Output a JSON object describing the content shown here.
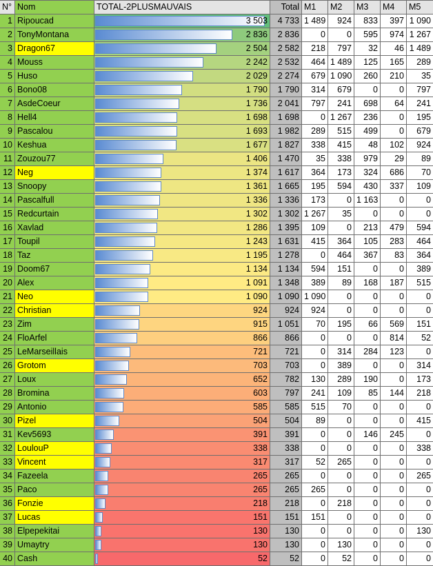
{
  "table": {
    "header": [
      "N°",
      "Nom",
      "TOTAL-2PLUSMAUVAIS",
      "Total",
      "M1",
      "M2",
      "M3",
      "M4",
      "M5"
    ],
    "highlight_color": "#ffff00",
    "name_color": "#92d050",
    "rows": [
      {
        "rank": 1,
        "name": "Ripoucad",
        "score": "3 503",
        "total": "4 733",
        "m": [
          "1 489",
          "924",
          "833",
          "397",
          "1 090"
        ]
      },
      {
        "rank": 2,
        "name": "TonyMontana",
        "score": "2 836",
        "total": "2 836",
        "m": [
          "0",
          "0",
          "595",
          "974",
          "1 267"
        ]
      },
      {
        "rank": 3,
        "name": "Dragon67",
        "score": "2 504",
        "total": "2 582",
        "m": [
          "218",
          "797",
          "32",
          "46",
          "1 489"
        ],
        "highlight": true
      },
      {
        "rank": 4,
        "name": "Mouss",
        "score": "2 242",
        "total": "2 532",
        "m": [
          "464",
          "1 489",
          "125",
          "165",
          "289"
        ]
      },
      {
        "rank": 5,
        "name": "Huso",
        "score": "2 029",
        "total": "2 274",
        "m": [
          "679",
          "1 090",
          "260",
          "210",
          "35"
        ]
      },
      {
        "rank": 6,
        "name": "Bono08",
        "score": "1 790",
        "total": "1 790",
        "m": [
          "314",
          "679",
          "0",
          "0",
          "797"
        ]
      },
      {
        "rank": 7,
        "name": "AsdeCoeur",
        "score": "1 736",
        "total": "2 041",
        "m": [
          "797",
          "241",
          "698",
          "64",
          "241"
        ]
      },
      {
        "rank": 8,
        "name": "Hell4",
        "score": "1 698",
        "total": "1 698",
        "m": [
          "0",
          "1 267",
          "236",
          "0",
          "195"
        ]
      },
      {
        "rank": 9,
        "name": "Pascalou",
        "score": "1 693",
        "total": "1 982",
        "m": [
          "289",
          "515",
          "499",
          "0",
          "679"
        ]
      },
      {
        "rank": 10,
        "name": "Keshua",
        "score": "1 677",
        "total": "1 827",
        "m": [
          "338",
          "415",
          "48",
          "102",
          "924"
        ]
      },
      {
        "rank": 11,
        "name": "Zouzou77",
        "score": "1 406",
        "total": "1 470",
        "m": [
          "35",
          "338",
          "979",
          "29",
          "89"
        ]
      },
      {
        "rank": 12,
        "name": "Neg",
        "score": "1 374",
        "total": "1 617",
        "m": [
          "364",
          "173",
          "324",
          "686",
          "70"
        ],
        "highlight": true
      },
      {
        "rank": 13,
        "name": "Snoopy",
        "score": "1 361",
        "total": "1 665",
        "m": [
          "195",
          "594",
          "430",
          "337",
          "109"
        ]
      },
      {
        "rank": 14,
        "name": "Pascalfull",
        "score": "1 336",
        "total": "1 336",
        "m": [
          "173",
          "0",
          "1 163",
          "0",
          "0"
        ]
      },
      {
        "rank": 15,
        "name": "Redcurtain",
        "score": "1 302",
        "total": "1 302",
        "m": [
          "1 267",
          "35",
          "0",
          "0",
          "0"
        ]
      },
      {
        "rank": 16,
        "name": "Xavlad",
        "score": "1 286",
        "total": "1 395",
        "m": [
          "109",
          "0",
          "213",
          "479",
          "594"
        ]
      },
      {
        "rank": 17,
        "name": "Toupil",
        "score": "1 243",
        "total": "1 631",
        "m": [
          "415",
          "364",
          "105",
          "283",
          "464"
        ]
      },
      {
        "rank": 18,
        "name": "Taz",
        "score": "1 195",
        "total": "1 278",
        "m": [
          "0",
          "464",
          "367",
          "83",
          "364"
        ]
      },
      {
        "rank": 19,
        "name": "Doom67",
        "score": "1 134",
        "total": "1 134",
        "m": [
          "594",
          "151",
          "0",
          "0",
          "389"
        ]
      },
      {
        "rank": 20,
        "name": "Alex",
        "score": "1 091",
        "total": "1 348",
        "m": [
          "389",
          "89",
          "168",
          "187",
          "515"
        ]
      },
      {
        "rank": 21,
        "name": "Neo",
        "score": "1 090",
        "total": "1 090",
        "m": [
          "1 090",
          "0",
          "0",
          "0",
          "0"
        ],
        "highlight": true
      },
      {
        "rank": 22,
        "name": "Christian",
        "score": "924",
        "total": "924",
        "m": [
          "924",
          "0",
          "0",
          "0",
          "0"
        ],
        "highlight": true
      },
      {
        "rank": 23,
        "name": "Zim",
        "score": "915",
        "total": "1 051",
        "m": [
          "70",
          "195",
          "66",
          "569",
          "151"
        ]
      },
      {
        "rank": 24,
        "name": "FloArfel",
        "score": "866",
        "total": "866",
        "m": [
          "0",
          "0",
          "0",
          "814",
          "52"
        ]
      },
      {
        "rank": 25,
        "name": "LeMarseillais",
        "score": "721",
        "total": "721",
        "m": [
          "0",
          "314",
          "284",
          "123",
          "0"
        ]
      },
      {
        "rank": 26,
        "name": "Grotom",
        "score": "703",
        "total": "703",
        "m": [
          "0",
          "389",
          "0",
          "0",
          "314"
        ],
        "highlight": true
      },
      {
        "rank": 27,
        "name": "Loux",
        "score": "652",
        "total": "782",
        "m": [
          "130",
          "289",
          "190",
          "0",
          "173"
        ]
      },
      {
        "rank": 28,
        "name": "Bromina",
        "score": "603",
        "total": "797",
        "m": [
          "241",
          "109",
          "85",
          "144",
          "218"
        ]
      },
      {
        "rank": 29,
        "name": "Antonio",
        "score": "585",
        "total": "585",
        "m": [
          "515",
          "70",
          "0",
          "0",
          "0"
        ]
      },
      {
        "rank": 30,
        "name": "Pizel",
        "score": "504",
        "total": "504",
        "m": [
          "89",
          "0",
          "0",
          "0",
          "415"
        ],
        "highlight": true
      },
      {
        "rank": 31,
        "name": "Kev5693",
        "score": "391",
        "total": "391",
        "m": [
          "0",
          "0",
          "146",
          "245",
          "0"
        ]
      },
      {
        "rank": 32,
        "name": "LoulouP",
        "score": "338",
        "total": "338",
        "m": [
          "0",
          "0",
          "0",
          "0",
          "338"
        ],
        "highlight": true
      },
      {
        "rank": 33,
        "name": "Vincent",
        "score": "317",
        "total": "317",
        "m": [
          "52",
          "265",
          "0",
          "0",
          "0"
        ],
        "highlight": true
      },
      {
        "rank": 34,
        "name": "Fazeela",
        "score": "265",
        "total": "265",
        "m": [
          "0",
          "0",
          "0",
          "0",
          "265"
        ]
      },
      {
        "rank": 35,
        "name": "Paco",
        "score": "265",
        "total": "265",
        "m": [
          "265",
          "0",
          "0",
          "0",
          "0"
        ]
      },
      {
        "rank": 36,
        "name": "Fonzie",
        "score": "218",
        "total": "218",
        "m": [
          "0",
          "218",
          "0",
          "0",
          "0"
        ],
        "highlight": true
      },
      {
        "rank": 37,
        "name": "Lucas",
        "score": "151",
        "total": "151",
        "m": [
          "151",
          "0",
          "0",
          "0",
          "0"
        ],
        "highlight": true
      },
      {
        "rank": 38,
        "name": "Elpepekitai",
        "score": "130",
        "total": "130",
        "m": [
          "0",
          "0",
          "0",
          "0",
          "130"
        ]
      },
      {
        "rank": 39,
        "name": "Umaytry",
        "score": "130",
        "total": "130",
        "m": [
          "0",
          "130",
          "0",
          "0",
          "0"
        ]
      },
      {
        "rank": 40,
        "name": "Cash",
        "score": "52",
        "total": "52",
        "m": [
          "0",
          "52",
          "0",
          "0",
          "0"
        ]
      }
    ]
  }
}
